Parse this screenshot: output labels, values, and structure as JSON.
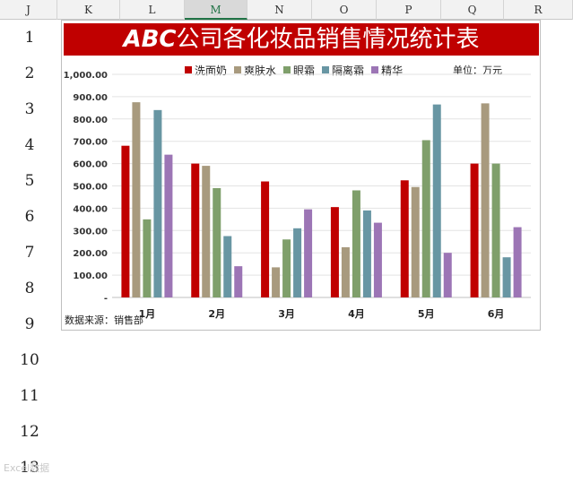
{
  "columns": [
    "J",
    "K",
    "L",
    "M",
    "N",
    "O",
    "P",
    "Q",
    "R"
  ],
  "active_column": "M",
  "rows": [
    "1",
    "2",
    "3",
    "4",
    "5",
    "6",
    "7",
    "8",
    "9",
    "10",
    "11",
    "12",
    "13"
  ],
  "chart_data": {
    "type": "bar",
    "title_brand": "ABC",
    "title_rest": "公司各化妆品销售情况统计表",
    "unit_label": "单位：万元",
    "source_label": "数据来源：销售部",
    "categories": [
      "1月",
      "2月",
      "3月",
      "4月",
      "5月",
      "6月"
    ],
    "series": [
      {
        "name": "洗面奶",
        "color": "#c00000",
        "values": [
          680,
          600,
          520,
          405,
          525,
          600
        ]
      },
      {
        "name": "爽肤水",
        "color": "#a89a7e",
        "values": [
          875,
          590,
          135,
          225,
          495,
          870
        ]
      },
      {
        "name": "眼霜",
        "color": "#7f9f6b",
        "values": [
          350,
          490,
          260,
          480,
          705,
          600
        ]
      },
      {
        "name": "隔离霜",
        "color": "#6896a3",
        "values": [
          840,
          275,
          310,
          390,
          865,
          180
        ]
      },
      {
        "name": "精华",
        "color": "#9c75b5",
        "values": [
          640,
          140,
          395,
          335,
          200,
          315
        ]
      }
    ],
    "y_ticks": [
      "-",
      "100.00",
      "200.00",
      "300.00",
      "400.00",
      "500.00",
      "600.00",
      "700.00",
      "800.00",
      "900.00",
      "1,000.00"
    ],
    "ylim": [
      0,
      1000
    ],
    "grid": true,
    "legend_position": "top"
  },
  "watermark": "Excel数据"
}
